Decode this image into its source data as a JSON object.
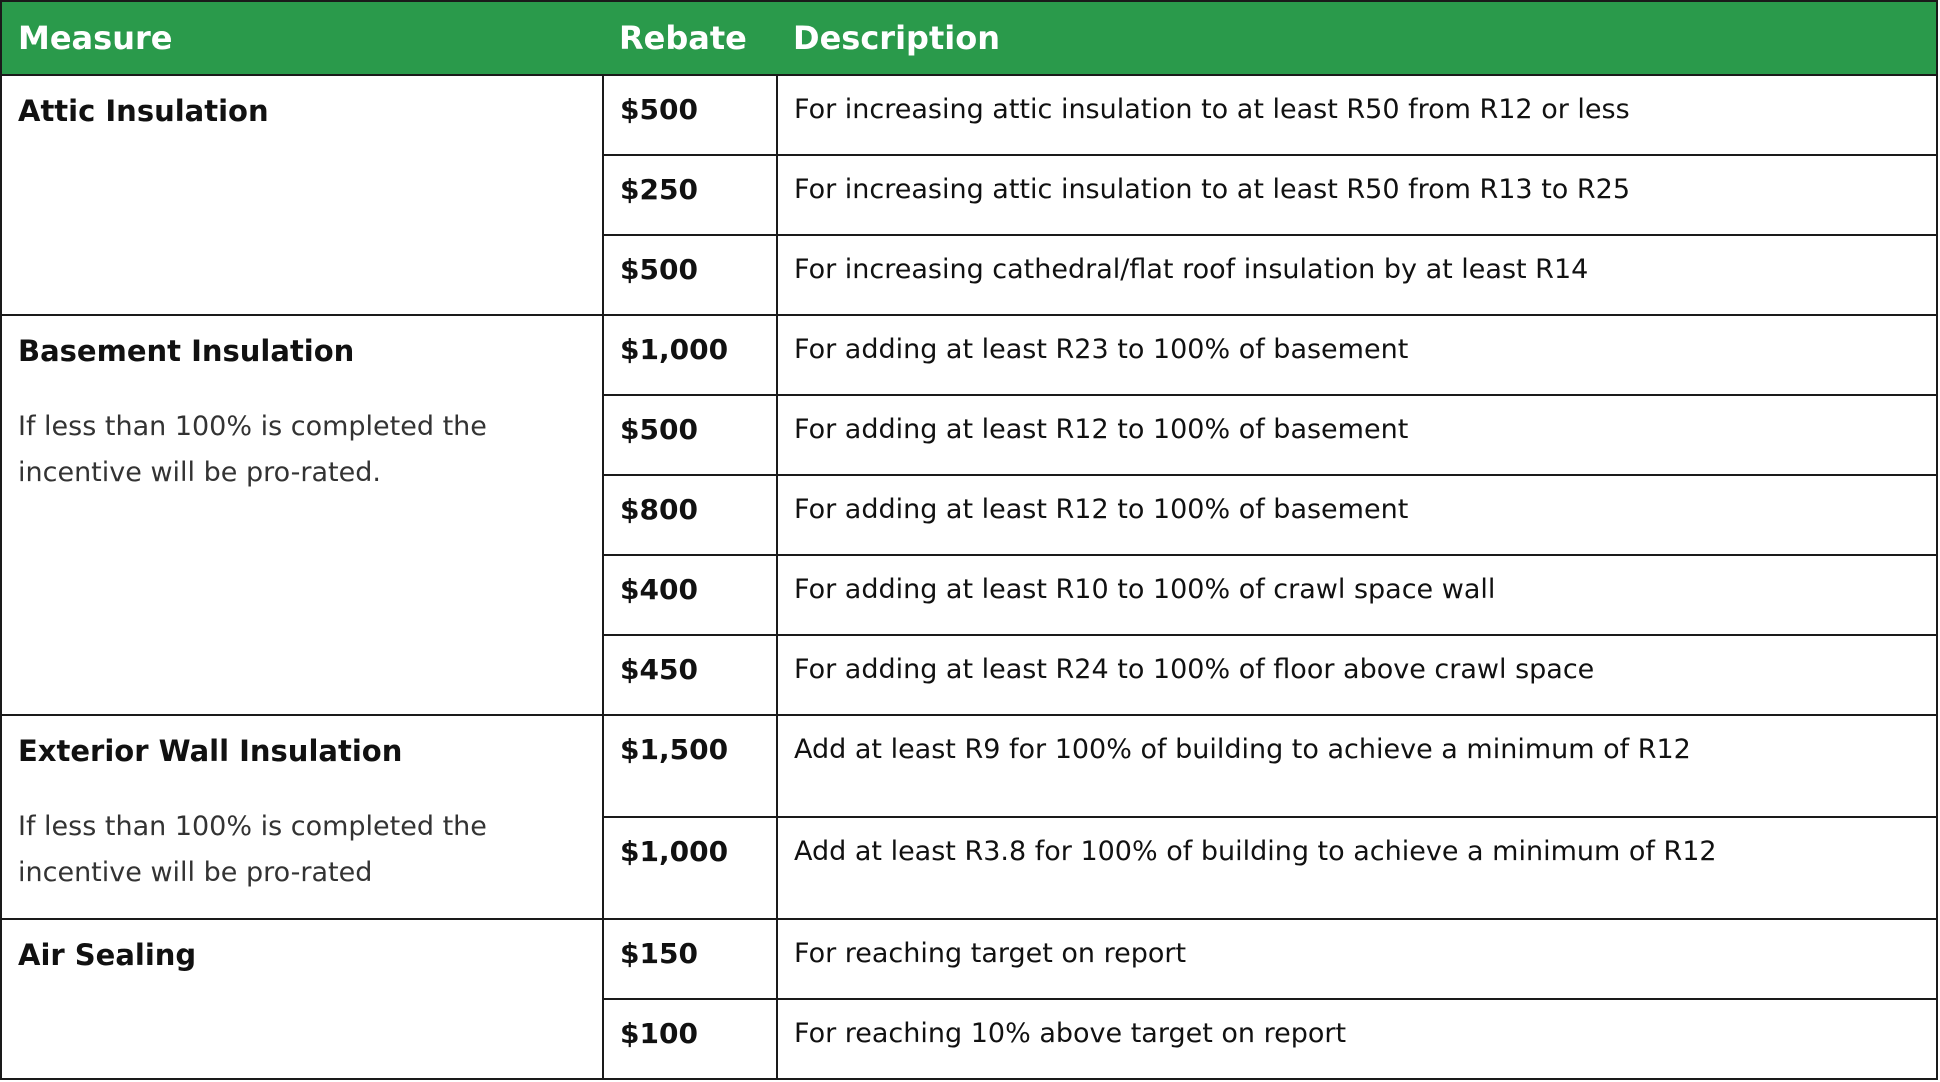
{
  "table": {
    "headers": {
      "measure": "Measure",
      "rebate": "Rebate",
      "description": "Description"
    },
    "groups": [
      {
        "measure": "Attic Insulation",
        "note": "",
        "rows": [
          {
            "rebate": "$500",
            "description": "For increasing attic insulation to at least R50 from R12 or less"
          },
          {
            "rebate": "$250",
            "description": "For increasing attic insulation to at least R50 from R13 to R25"
          },
          {
            "rebate": "$500",
            "description": "For increasing cathedral/flat roof insulation by at least R14"
          }
        ]
      },
      {
        "measure": "Basement Insulation",
        "note": "If less than 100% is completed the incentive will be pro-rated.",
        "rows": [
          {
            "rebate": "$1,000",
            "description": "For adding at least R23 to 100% of basement"
          },
          {
            "rebate": "$500",
            "description": "For adding at least R12 to 100% of basement"
          },
          {
            "rebate": "$800",
            "description": "For adding at least R12 to 100% of basement"
          },
          {
            "rebate": "$400",
            "description": "For adding at least R10 to 100% of crawl space wall"
          },
          {
            "rebate": "$450",
            "description": "For adding at least R24 to 100% of floor above crawl space"
          }
        ]
      },
      {
        "measure": "Exterior Wall Insulation",
        "note": "If less than 100% is completed the incentive will be pro-rated",
        "rows": [
          {
            "rebate": "$1,500",
            "description": "Add at least R9 for 100% of building to achieve a minimum of R12"
          },
          {
            "rebate": "$1,000",
            "description": "Add at least R3.8 for 100% of building to achieve a minimum of R12"
          }
        ]
      },
      {
        "measure": "Air Sealing",
        "note": "",
        "rows": [
          {
            "rebate": "$150",
            "description": "For reaching target on report"
          },
          {
            "rebate": "$100",
            "description": "For reaching 10% above target on report"
          }
        ]
      }
    ]
  },
  "colors": {
    "header_bg": "#2a9a4b",
    "header_text": "#ffffff",
    "border": "#1a1a1a"
  }
}
